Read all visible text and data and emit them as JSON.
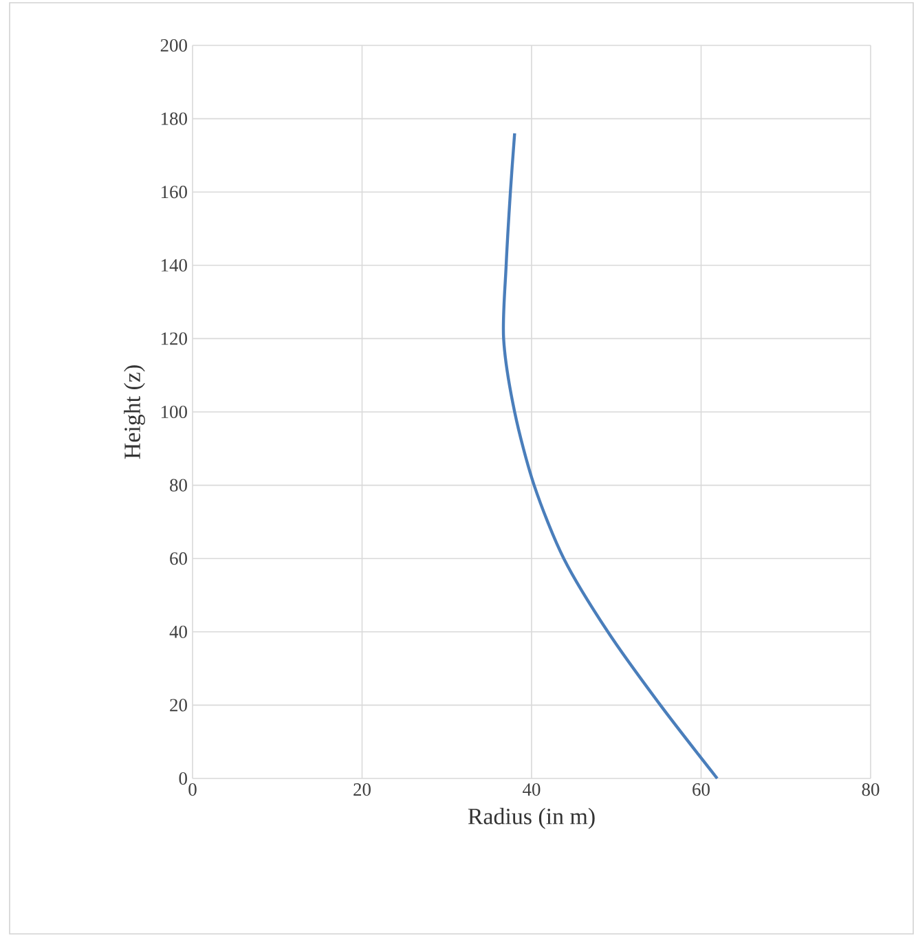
{
  "chart_data": {
    "type": "line",
    "xlabel": "Radius (in m)",
    "ylabel": "Height (z)",
    "series": [
      {
        "color": "#4a7ebb",
        "x": [
          61.9,
          55.2,
          49.0,
          43.8,
          40.3,
          38.0,
          36.7,
          37.0,
          37.5,
          38.0
        ],
        "values": [
          0,
          20,
          40,
          60,
          80,
          100,
          120,
          140,
          160,
          176
        ]
      }
    ],
    "xlim": [
      0,
      80
    ],
    "xticks": [
      0,
      20,
      40,
      60,
      80
    ],
    "ylim": [
      0,
      200
    ],
    "yticks": [
      0,
      20,
      40,
      60,
      80,
      100,
      120,
      140,
      160,
      180,
      200
    ],
    "grid": true,
    "marker": "none",
    "line_style": "solid"
  }
}
